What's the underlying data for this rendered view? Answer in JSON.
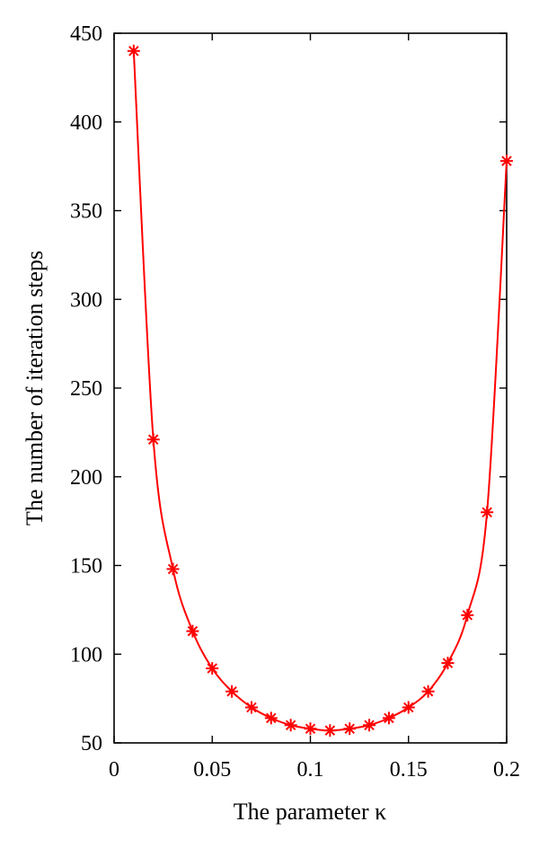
{
  "chart_data": {
    "type": "line",
    "title": "",
    "xlabel": "The parameter κ",
    "ylabel": "The number of iteration steps",
    "xlim": [
      0,
      0.2
    ],
    "ylim": [
      50,
      450
    ],
    "xticks": [
      0,
      0.05,
      0.1,
      0.15,
      0.2
    ],
    "xtick_labels": [
      "0",
      "0.05",
      "0.1",
      "0.15",
      "0.2"
    ],
    "yticks": [
      50,
      100,
      150,
      200,
      250,
      300,
      350,
      400,
      450
    ],
    "ytick_labels": [
      "50",
      "100",
      "150",
      "200",
      "250",
      "300",
      "350",
      "400",
      "450"
    ],
    "grid": false,
    "series": [
      {
        "color": "#ff0000",
        "marker": "asterisk",
        "x": [
          0.01,
          0.02,
          0.03,
          0.04,
          0.05,
          0.06,
          0.07,
          0.08,
          0.09,
          0.1,
          0.11,
          0.12,
          0.13,
          0.14,
          0.15,
          0.16,
          0.17,
          0.18,
          0.19,
          0.2
        ],
        "y": [
          440,
          221,
          148,
          113,
          92,
          79,
          70,
          64,
          60,
          58,
          57,
          58,
          60,
          64,
          70,
          79,
          95,
          122,
          180,
          378
        ]
      }
    ]
  }
}
